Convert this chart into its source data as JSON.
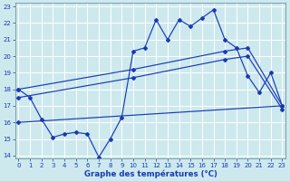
{
  "title": "Graphe des températures (°C)",
  "bg_color": "#cde9ee",
  "grid_color": "#ffffff",
  "line_color": "#1a3ab4",
  "xlim_min": -0.3,
  "xlim_max": 23.3,
  "ylim_min": 13.8,
  "ylim_max": 23.2,
  "yticks": [
    14,
    15,
    16,
    17,
    18,
    19,
    20,
    21,
    22,
    23
  ],
  "xticks": [
    0,
    1,
    2,
    3,
    4,
    5,
    6,
    7,
    8,
    9,
    10,
    11,
    12,
    13,
    14,
    15,
    16,
    17,
    18,
    19,
    20,
    21,
    22,
    23
  ],
  "line1_x": [
    0,
    1,
    2,
    3,
    4,
    5,
    6,
    7,
    8,
    9,
    10,
    11,
    12,
    13,
    14,
    15,
    16,
    17,
    18,
    19,
    20,
    21,
    22,
    23
  ],
  "line1_y": [
    18.0,
    17.5,
    16.2,
    15.1,
    15.3,
    15.4,
    15.3,
    13.9,
    15.0,
    16.3,
    20.3,
    20.5,
    22.2,
    21.0,
    22.2,
    21.8,
    22.3,
    22.8,
    21.0,
    20.5,
    18.8,
    17.8,
    19.0,
    17.0
  ],
  "line2_x": [
    0,
    10,
    18,
    20,
    23
  ],
  "line2_y": [
    18.0,
    19.2,
    20.3,
    20.5,
    17.0
  ],
  "line3_x": [
    0,
    10,
    18,
    20,
    23
  ],
  "line3_y": [
    17.5,
    18.7,
    19.8,
    20.0,
    16.8
  ],
  "line4_x": [
    0,
    23
  ],
  "line4_y": [
    16.0,
    17.0
  ]
}
